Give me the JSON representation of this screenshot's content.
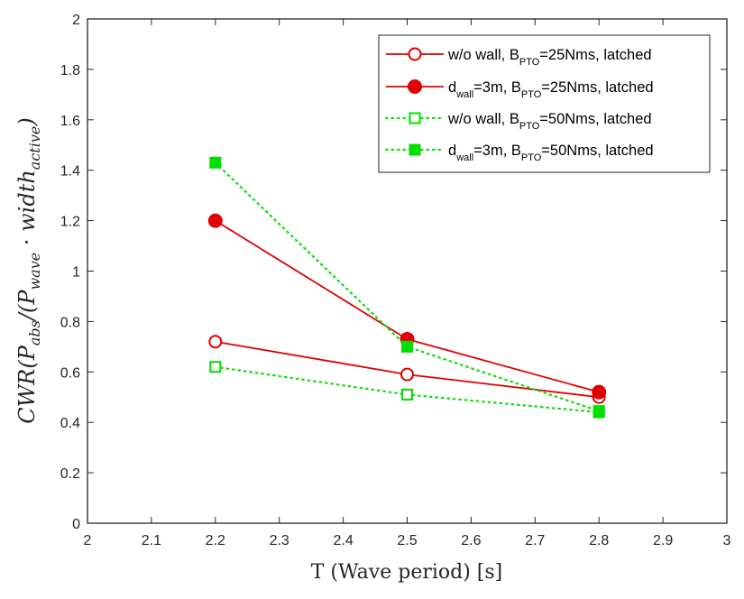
{
  "chart_data": {
    "type": "line",
    "title": "",
    "xlabel": "T (Wave period) [s]",
    "ylabel": {
      "main": "CWR(P",
      "sub1": "abs",
      "mid": "/(P",
      "sub2": "wave",
      "mid2": " · width",
      "sub3": "active",
      "end": ")"
    },
    "xlim": [
      2,
      3
    ],
    "ylim": [
      0,
      2
    ],
    "xticks": [
      "2",
      "2.1",
      "2.2",
      "2.3",
      "2.4",
      "2.5",
      "2.6",
      "2.7",
      "2.8",
      "2.9",
      "3"
    ],
    "yticks": [
      "0",
      "0.2",
      "0.4",
      "0.6",
      "0.8",
      "1",
      "1.2",
      "1.4",
      "1.6",
      "1.8",
      "2"
    ],
    "grid": false,
    "legend_position": "top-right",
    "x": [
      2.2,
      2.5,
      2.8
    ],
    "series": [
      {
        "name": "w/o wall, B_PTO=25Nms, latched",
        "legend": {
          "pre": "w/o wall, B",
          "sub_a": "",
          "mid": "",
          "sub": "PTO",
          "post": "=25Nms, latched"
        },
        "color": "#e00000",
        "line": "solid",
        "marker": "circle-open",
        "values": [
          0.72,
          0.59,
          0.5
        ]
      },
      {
        "name": "d_wall=3m, B_PTO=25Nms, latched",
        "legend": {
          "pre": "d",
          "sub_a": "wall",
          "mid": "=3m, B",
          "sub": "PTO",
          "post": "=25Nms, latched"
        },
        "color": "#e00000",
        "line": "solid",
        "marker": "circle-filled",
        "values": [
          1.2,
          0.73,
          0.52
        ]
      },
      {
        "name": "w/o wall, B_PTO=50Nms, latched",
        "legend": {
          "pre": "w/o wall, B",
          "sub_a": "",
          "mid": "",
          "sub": "PTO",
          "post": "=50Nms, latched"
        },
        "color": "#00e000",
        "line": "dotted",
        "marker": "square-open",
        "values": [
          0.62,
          0.51,
          0.44
        ]
      },
      {
        "name": "d_wall=3m, B_PTO=50Nms, latched",
        "legend": {
          "pre": "d",
          "sub_a": "wall",
          "mid": "=3m, B",
          "sub": "PTO",
          "post": "=50Nms, latched"
        },
        "color": "#00e000",
        "line": "dotted",
        "marker": "square-filled",
        "values": [
          1.43,
          0.7,
          0.445
        ]
      }
    ]
  }
}
